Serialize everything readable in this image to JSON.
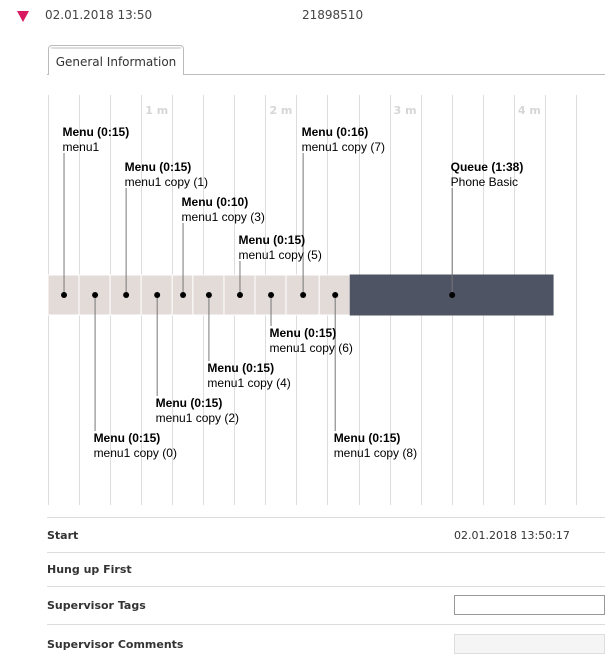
{
  "header": {
    "date": "02.01.2018 13:50",
    "id": "21898510"
  },
  "tabs": [
    {
      "label": "General Information"
    }
  ],
  "timeline": {
    "scale_labels": [
      "1 m",
      "2 m",
      "3 m",
      "4 m"
    ],
    "segments": [
      {
        "title": "Menu (0:15)",
        "name": "menu1",
        "start_s": 0,
        "dur_s": 15,
        "side": "above"
      },
      {
        "title": "Menu (0:15)",
        "name": "menu1 copy (0)",
        "start_s": 15,
        "dur_s": 15,
        "side": "below"
      },
      {
        "title": "Menu (0:15)",
        "name": "menu1 copy (1)",
        "start_s": 30,
        "dur_s": 15,
        "side": "above"
      },
      {
        "title": "Menu (0:15)",
        "name": "menu1 copy (2)",
        "start_s": 45,
        "dur_s": 15,
        "side": "below"
      },
      {
        "title": "Menu (0:10)",
        "name": "menu1 copy (3)",
        "start_s": 60,
        "dur_s": 10,
        "side": "above"
      },
      {
        "title": "Menu (0:15)",
        "name": "menu1 copy (4)",
        "start_s": 70,
        "dur_s": 15,
        "side": "below"
      },
      {
        "title": "Menu (0:15)",
        "name": "menu1 copy (5)",
        "start_s": 85,
        "dur_s": 15,
        "side": "above"
      },
      {
        "title": "Menu (0:15)",
        "name": "menu1 copy (6)",
        "start_s": 100,
        "dur_s": 15,
        "side": "below"
      },
      {
        "title": "Menu (0:16)",
        "name": "menu1 copy (7)",
        "start_s": 115,
        "dur_s": 16,
        "side": "above"
      },
      {
        "title": "Menu (0:15)",
        "name": "menu1 copy (8)",
        "start_s": 131,
        "dur_s": 15,
        "side": "below"
      },
      {
        "title": "Queue (1:38)",
        "name": "Phone Basic",
        "start_s": 146,
        "dur_s": 98,
        "side": "above",
        "kind": "queue"
      }
    ],
    "colors": {
      "menu": "#e2dbd8",
      "queue": "#4e5463",
      "grid": "#dddddd",
      "scale": "#d6d6d6"
    }
  },
  "details": {
    "start_label": "Start",
    "start_value": "02.01.2018 13:50:17",
    "hungup_label": "Hung up First",
    "tags_label": "Supervisor Tags",
    "comments_label": "Supervisor Comments"
  }
}
